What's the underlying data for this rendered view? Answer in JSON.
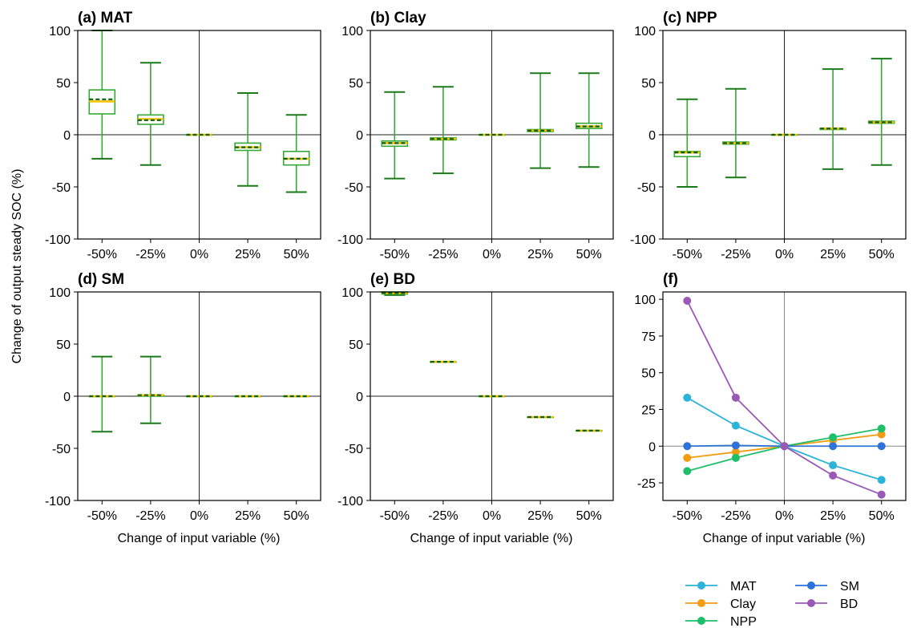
{
  "figure": {
    "ylabel": "Change of output steady SOC (%)",
    "xlabel": "Change of input variable (%)"
  },
  "chart_data": [
    {
      "type": "box",
      "title": "(a) MAT",
      "categories": [
        "-50%",
        "-25%",
        "0%",
        "25%",
        "50%"
      ],
      "ylim": [
        -100,
        100
      ],
      "yticks": [
        -100,
        -50,
        0,
        50,
        100
      ],
      "boxes": [
        {
          "min": -23,
          "q1": 20,
          "median": 32,
          "mean": 34,
          "q3": 43,
          "max": 100
        },
        {
          "min": -29,
          "q1": 10,
          "median": 15,
          "mean": 14,
          "q3": 19,
          "max": 69
        },
        {
          "min": 0,
          "q1": 0,
          "median": 0,
          "mean": 0,
          "q3": 0,
          "max": 0
        },
        {
          "min": -49,
          "q1": -15,
          "median": -12,
          "mean": -12,
          "q3": -8,
          "max": 40
        },
        {
          "min": -55,
          "q1": -29,
          "median": -23,
          "mean": -23,
          "q3": -16,
          "max": 19
        }
      ]
    },
    {
      "type": "box",
      "title": "(b) Clay",
      "categories": [
        "-50%",
        "-25%",
        "0%",
        "25%",
        "50%"
      ],
      "ylim": [
        -100,
        100
      ],
      "yticks": [
        -100,
        -50,
        0,
        50,
        100
      ],
      "boxes": [
        {
          "min": -42,
          "q1": -11,
          "median": -8,
          "mean": -8,
          "q3": -6,
          "max": 41
        },
        {
          "min": -37,
          "q1": -5,
          "median": -4,
          "mean": -4,
          "q3": -3,
          "max": 46
        },
        {
          "min": 0,
          "q1": 0,
          "median": 0,
          "mean": 0,
          "q3": 0,
          "max": 0
        },
        {
          "min": -32,
          "q1": 3,
          "median": 4,
          "mean": 4,
          "q3": 5,
          "max": 59
        },
        {
          "min": -31,
          "q1": 6,
          "median": 8,
          "mean": 8,
          "q3": 11,
          "max": 59
        }
      ]
    },
    {
      "type": "box",
      "title": "(c) NPP",
      "categories": [
        "-50%",
        "-25%",
        "0%",
        "25%",
        "50%"
      ],
      "ylim": [
        -100,
        100
      ],
      "yticks": [
        -100,
        -50,
        0,
        50,
        100
      ],
      "boxes": [
        {
          "min": -50,
          "q1": -21,
          "median": -17,
          "mean": -17,
          "q3": -16,
          "max": 34
        },
        {
          "min": -41,
          "q1": -9,
          "median": -8,
          "mean": -8,
          "q3": -7,
          "max": 44
        },
        {
          "min": 0,
          "q1": 0,
          "median": 0,
          "mean": 0,
          "q3": 0,
          "max": 0
        },
        {
          "min": -33,
          "q1": 5,
          "median": 6,
          "mean": 6,
          "q3": 6,
          "max": 63
        },
        {
          "min": -29,
          "q1": 11,
          "median": 12,
          "mean": 12,
          "q3": 13,
          "max": 73
        }
      ]
    },
    {
      "type": "box",
      "title": "(d) SM",
      "categories": [
        "-50%",
        "-25%",
        "0%",
        "25%",
        "50%"
      ],
      "ylim": [
        -100,
        100
      ],
      "yticks": [
        -100,
        -50,
        0,
        50,
        100
      ],
      "boxes": [
        {
          "min": -34,
          "q1": 0,
          "median": 0,
          "mean": 0,
          "q3": 0,
          "max": 38
        },
        {
          "min": -26,
          "q1": 0,
          "median": 1,
          "mean": 1,
          "q3": 1,
          "max": 38
        },
        {
          "min": 0,
          "q1": 0,
          "median": 0,
          "mean": 0,
          "q3": 0,
          "max": 0
        },
        {
          "min": 0,
          "q1": 0,
          "median": 0,
          "mean": 0,
          "q3": 0,
          "max": 0
        },
        {
          "min": 0,
          "q1": 0,
          "median": 0,
          "mean": 0,
          "q3": 0,
          "max": 0
        }
      ]
    },
    {
      "type": "box",
      "title": "(e) BD",
      "categories": [
        "-50%",
        "-25%",
        "0%",
        "25%",
        "50%"
      ],
      "ylim": [
        -100,
        100
      ],
      "yticks": [
        -100,
        -50,
        0,
        50,
        100
      ],
      "boxes": [
        {
          "min": 97,
          "q1": 98,
          "median": 99,
          "mean": 99,
          "q3": 100,
          "max": 100
        },
        {
          "min": 33,
          "q1": 33,
          "median": 33,
          "mean": 33,
          "q3": 33,
          "max": 33
        },
        {
          "min": 0,
          "q1": 0,
          "median": 0,
          "mean": 0,
          "q3": 0,
          "max": 0
        },
        {
          "min": -20,
          "q1": -20,
          "median": -20,
          "mean": -20,
          "q3": -20,
          "max": -20
        },
        {
          "min": -33,
          "q1": -33,
          "median": -33,
          "mean": -33,
          "q3": -33,
          "max": -33
        }
      ]
    },
    {
      "type": "line",
      "title": "(f)",
      "categories": [
        "-50%",
        "-25%",
        "0%",
        "25%",
        "50%"
      ],
      "ylim": [
        -37,
        105
      ],
      "yticks": [
        -25,
        0,
        25,
        50,
        75,
        100
      ],
      "legend": "bottom-outside",
      "series": [
        {
          "name": "MAT",
          "color": "#2bb3d8",
          "values": [
            33,
            14,
            0,
            -13,
            -23
          ]
        },
        {
          "name": "Clay",
          "color": "#f39c12",
          "values": [
            -8,
            -4,
            0,
            4,
            8
          ]
        },
        {
          "name": "NPP",
          "color": "#1fbf6a",
          "values": [
            -17,
            -8,
            0,
            6,
            12
          ]
        },
        {
          "name": "SM",
          "color": "#2e73d8",
          "values": [
            0,
            0.5,
            0,
            0,
            0
          ]
        },
        {
          "name": "BD",
          "color": "#9b59b6",
          "values": [
            99,
            33,
            0,
            -20,
            -33
          ]
        }
      ]
    }
  ]
}
